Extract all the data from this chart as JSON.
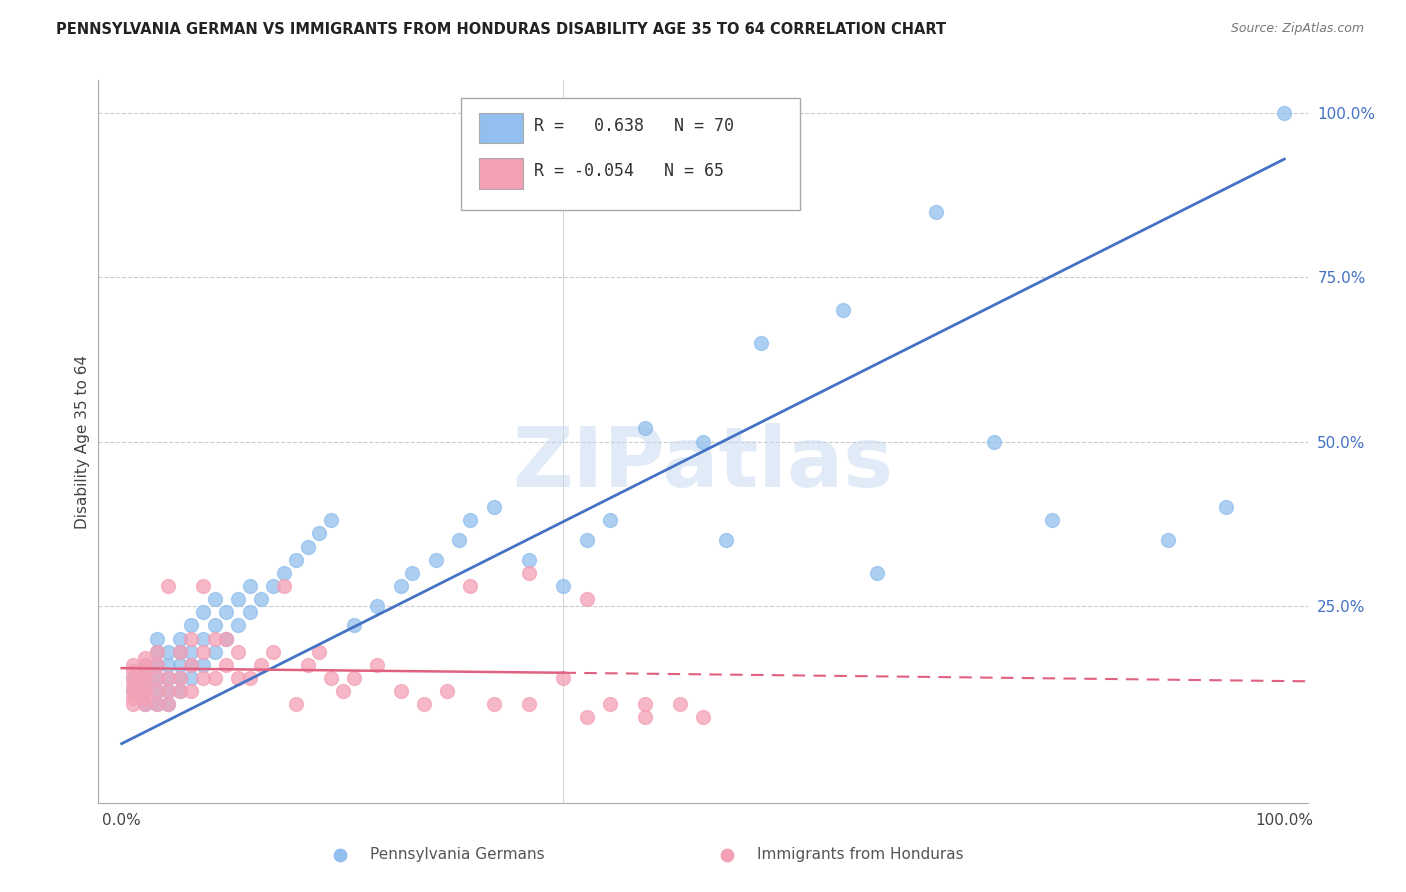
{
  "title": "PENNSYLVANIA GERMAN VS IMMIGRANTS FROM HONDURAS DISABILITY AGE 35 TO 64 CORRELATION CHART",
  "source": "Source: ZipAtlas.com",
  "ylabel": "Disability Age 35 to 64",
  "legend_label1": "Pennsylvania Germans",
  "legend_label2": "Immigrants from Honduras",
  "r1": "0.638",
  "n1": "70",
  "r2": "-0.054",
  "n2": "65",
  "blue_color": "#92BFED",
  "pink_color": "#F4A0B5",
  "blue_line_color": "#4472C4",
  "pink_line_color": "#E06080",
  "watermark_color": "#C5D8F0",
  "background_color": "#FFFFFF",
  "grid_color": "#CCCCCC",
  "blue_x": [
    0.01,
    0.01,
    0.02,
    0.02,
    0.02,
    0.02,
    0.02,
    0.03,
    0.03,
    0.03,
    0.03,
    0.03,
    0.03,
    0.04,
    0.04,
    0.04,
    0.04,
    0.04,
    0.05,
    0.05,
    0.05,
    0.05,
    0.05,
    0.06,
    0.06,
    0.06,
    0.06,
    0.07,
    0.07,
    0.07,
    0.08,
    0.08,
    0.08,
    0.09,
    0.09,
    0.1,
    0.1,
    0.11,
    0.11,
    0.12,
    0.13,
    0.14,
    0.15,
    0.16,
    0.17,
    0.18,
    0.2,
    0.22,
    0.24,
    0.25,
    0.27,
    0.29,
    0.3,
    0.32,
    0.35,
    0.38,
    0.4,
    0.42,
    0.45,
    0.5,
    0.52,
    0.55,
    0.62,
    0.65,
    0.7,
    0.75,
    0.8,
    0.9,
    0.95,
    1.0
  ],
  "blue_y": [
    0.12,
    0.14,
    0.1,
    0.12,
    0.13,
    0.15,
    0.16,
    0.1,
    0.12,
    0.14,
    0.16,
    0.18,
    0.2,
    0.1,
    0.12,
    0.14,
    0.16,
    0.18,
    0.12,
    0.14,
    0.16,
    0.18,
    0.2,
    0.14,
    0.16,
    0.18,
    0.22,
    0.16,
    0.2,
    0.24,
    0.18,
    0.22,
    0.26,
    0.2,
    0.24,
    0.22,
    0.26,
    0.24,
    0.28,
    0.26,
    0.28,
    0.3,
    0.32,
    0.34,
    0.36,
    0.38,
    0.22,
    0.25,
    0.28,
    0.3,
    0.32,
    0.35,
    0.38,
    0.4,
    0.32,
    0.28,
    0.35,
    0.38,
    0.52,
    0.5,
    0.35,
    0.65,
    0.7,
    0.3,
    0.85,
    0.5,
    0.38,
    0.35,
    0.4,
    1.0
  ],
  "pink_x": [
    0.01,
    0.01,
    0.01,
    0.01,
    0.01,
    0.01,
    0.01,
    0.02,
    0.02,
    0.02,
    0.02,
    0.02,
    0.02,
    0.02,
    0.02,
    0.03,
    0.03,
    0.03,
    0.03,
    0.03,
    0.04,
    0.04,
    0.04,
    0.04,
    0.05,
    0.05,
    0.05,
    0.06,
    0.06,
    0.06,
    0.07,
    0.07,
    0.07,
    0.08,
    0.08,
    0.09,
    0.09,
    0.1,
    0.1,
    0.11,
    0.12,
    0.13,
    0.14,
    0.15,
    0.16,
    0.17,
    0.18,
    0.19,
    0.2,
    0.22,
    0.24,
    0.26,
    0.28,
    0.32,
    0.35,
    0.38,
    0.4,
    0.42,
    0.45,
    0.3,
    0.35,
    0.4,
    0.45,
    0.48,
    0.5
  ],
  "pink_y": [
    0.1,
    0.11,
    0.12,
    0.13,
    0.14,
    0.15,
    0.16,
    0.1,
    0.11,
    0.12,
    0.13,
    0.14,
    0.15,
    0.16,
    0.17,
    0.1,
    0.12,
    0.14,
    0.16,
    0.18,
    0.1,
    0.12,
    0.14,
    0.28,
    0.12,
    0.14,
    0.18,
    0.12,
    0.16,
    0.2,
    0.14,
    0.18,
    0.28,
    0.14,
    0.2,
    0.16,
    0.2,
    0.14,
    0.18,
    0.14,
    0.16,
    0.18,
    0.28,
    0.1,
    0.16,
    0.18,
    0.14,
    0.12,
    0.14,
    0.16,
    0.12,
    0.1,
    0.12,
    0.1,
    0.1,
    0.14,
    0.08,
    0.1,
    0.1,
    0.28,
    0.3,
    0.26,
    0.08,
    0.1,
    0.08
  ]
}
